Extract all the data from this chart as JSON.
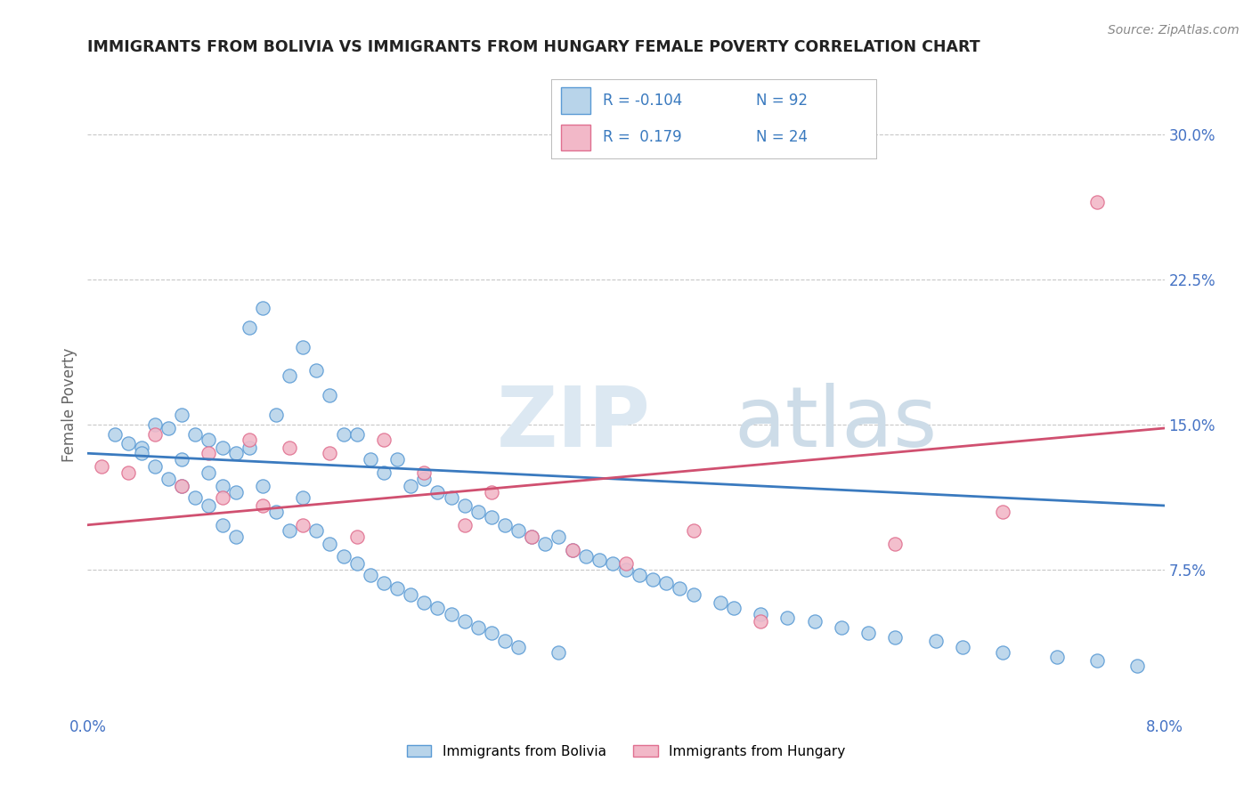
{
  "title": "IMMIGRANTS FROM BOLIVIA VS IMMIGRANTS FROM HUNGARY FEMALE POVERTY CORRELATION CHART",
  "source": "Source: ZipAtlas.com",
  "ylabel": "Female Poverty",
  "yticks": [
    0.075,
    0.15,
    0.225,
    0.3
  ],
  "ytick_labels": [
    "7.5%",
    "15.0%",
    "22.5%",
    "30.0%"
  ],
  "xlim": [
    0.0,
    0.08
  ],
  "ylim": [
    0.0,
    0.32
  ],
  "series1_label": "Immigrants from Bolivia",
  "series2_label": "Immigrants from Hungary",
  "series1_face": "#b8d4ea",
  "series2_face": "#f2b8c8",
  "series1_edge": "#5b9bd5",
  "series2_edge": "#e07090",
  "line1_color": "#3a7abf",
  "line2_color": "#d05070",
  "legend_color": "#3a7abf",
  "watermark_zip_color": "#dce8f0",
  "watermark_atlas_color": "#c8dce8",
  "background_color": "#ffffff",
  "grid_color": "#c8c8c8",
  "tick_color": "#4472c4",
  "title_color": "#222222",
  "source_color": "#888888",
  "ylabel_color": "#666666",
  "bolivia_x": [
    0.002,
    0.003,
    0.004,
    0.004,
    0.005,
    0.005,
    0.006,
    0.006,
    0.007,
    0.007,
    0.007,
    0.008,
    0.008,
    0.009,
    0.009,
    0.009,
    0.01,
    0.01,
    0.01,
    0.011,
    0.011,
    0.011,
    0.012,
    0.012,
    0.013,
    0.013,
    0.014,
    0.014,
    0.015,
    0.015,
    0.016,
    0.016,
    0.017,
    0.017,
    0.018,
    0.018,
    0.019,
    0.019,
    0.02,
    0.02,
    0.021,
    0.021,
    0.022,
    0.022,
    0.023,
    0.023,
    0.024,
    0.024,
    0.025,
    0.025,
    0.026,
    0.026,
    0.027,
    0.027,
    0.028,
    0.028,
    0.029,
    0.029,
    0.03,
    0.03,
    0.031,
    0.031,
    0.032,
    0.032,
    0.033,
    0.034,
    0.035,
    0.035,
    0.036,
    0.037,
    0.038,
    0.039,
    0.04,
    0.041,
    0.042,
    0.043,
    0.044,
    0.045,
    0.047,
    0.048,
    0.05,
    0.052,
    0.054,
    0.056,
    0.058,
    0.06,
    0.063,
    0.065,
    0.068,
    0.072,
    0.075,
    0.078
  ],
  "bolivia_y": [
    0.145,
    0.14,
    0.138,
    0.135,
    0.15,
    0.128,
    0.148,
    0.122,
    0.155,
    0.132,
    0.118,
    0.145,
    0.112,
    0.142,
    0.125,
    0.108,
    0.138,
    0.118,
    0.098,
    0.135,
    0.115,
    0.092,
    0.2,
    0.138,
    0.21,
    0.118,
    0.155,
    0.105,
    0.175,
    0.095,
    0.19,
    0.112,
    0.178,
    0.095,
    0.165,
    0.088,
    0.145,
    0.082,
    0.145,
    0.078,
    0.132,
    0.072,
    0.125,
    0.068,
    0.132,
    0.065,
    0.118,
    0.062,
    0.122,
    0.058,
    0.115,
    0.055,
    0.112,
    0.052,
    0.108,
    0.048,
    0.105,
    0.045,
    0.102,
    0.042,
    0.098,
    0.038,
    0.095,
    0.035,
    0.092,
    0.088,
    0.092,
    0.032,
    0.085,
    0.082,
    0.08,
    0.078,
    0.075,
    0.072,
    0.07,
    0.068,
    0.065,
    0.062,
    0.058,
    0.055,
    0.052,
    0.05,
    0.048,
    0.045,
    0.042,
    0.04,
    0.038,
    0.035,
    0.032,
    0.03,
    0.028,
    0.025
  ],
  "hungary_x": [
    0.001,
    0.003,
    0.005,
    0.007,
    0.009,
    0.01,
    0.012,
    0.013,
    0.015,
    0.016,
    0.018,
    0.02,
    0.022,
    0.025,
    0.028,
    0.03,
    0.033,
    0.036,
    0.04,
    0.045,
    0.05,
    0.06,
    0.068,
    0.075
  ],
  "hungary_y": [
    0.128,
    0.125,
    0.145,
    0.118,
    0.135,
    0.112,
    0.142,
    0.108,
    0.138,
    0.098,
    0.135,
    0.092,
    0.142,
    0.125,
    0.098,
    0.115,
    0.092,
    0.085,
    0.078,
    0.095,
    0.048,
    0.088,
    0.105,
    0.265
  ],
  "bolivia_line_x0": 0.0,
  "bolivia_line_x1": 0.08,
  "bolivia_line_y0": 0.135,
  "bolivia_line_y1": 0.108,
  "hungary_line_x0": 0.0,
  "hungary_line_x1": 0.08,
  "hungary_line_y0": 0.098,
  "hungary_line_y1": 0.148
}
